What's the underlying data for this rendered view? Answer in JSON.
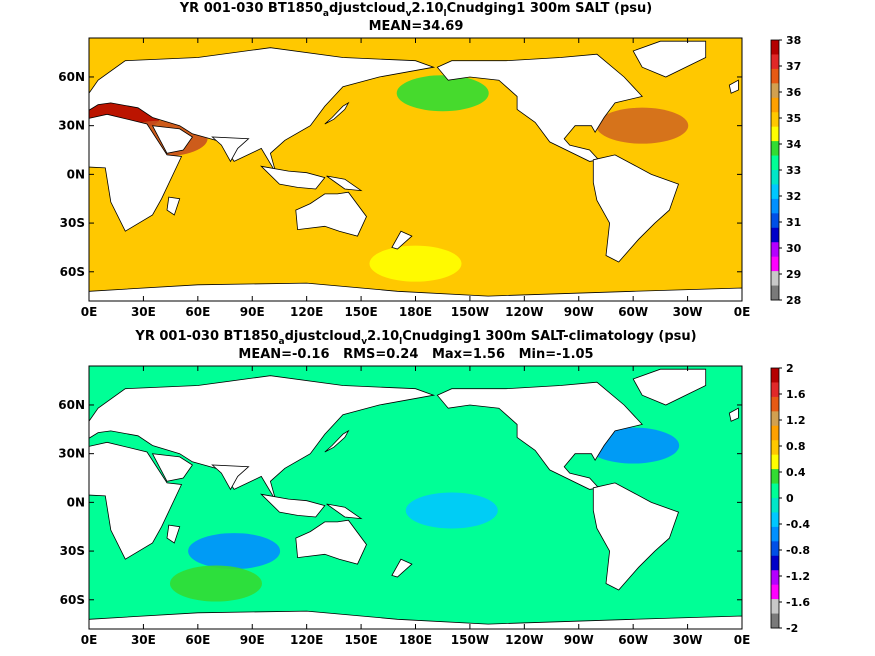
{
  "chart_data": [
    {
      "type": "heatmap",
      "title_parts": [
        "YR 001-030 BT1850",
        "a",
        "djustcloud",
        "v",
        "2.10",
        "l",
        "Cnudging1 300m SALT (psu)"
      ],
      "subtitle": "MEAN=34.69",
      "x_ticks": [
        "0E",
        "30E",
        "60E",
        "90E",
        "120E",
        "150E",
        "180E",
        "150W",
        "120W",
        "90W",
        "60W",
        "30W",
        "0E"
      ],
      "y_ticks": [
        "60N",
        "30N",
        "0N",
        "30S",
        "60S"
      ],
      "y_tick_lat": [
        60,
        30,
        0,
        -30,
        -60
      ],
      "colorbar_labels": [
        "38",
        "37",
        "36",
        "35",
        "34",
        "33",
        "32",
        "31",
        "30",
        "29",
        "28"
      ],
      "colorbar_colors": [
        "#b40000",
        "#e02828",
        "#e65a14",
        "#d2a050",
        "#ffa000",
        "#ffc800",
        "#ffff00",
        "#32dc32",
        "#00ff96",
        "#00e6c8",
        "#00c8ff",
        "#0090ff",
        "#0050e6",
        "#0000c8",
        "#b400ff",
        "#ff00ff",
        "#c8c8c8",
        "#7a7a7a"
      ],
      "background_color": "#ffc800",
      "regions": [
        {
          "label": "north-atlantic-high",
          "lon": 305,
          "lat": 30,
          "color": "#d2691e"
        },
        {
          "label": "mediterranean",
          "lon": 15,
          "lat": 37,
          "color": "#b40000"
        },
        {
          "label": "red-sea",
          "lon": 40,
          "lat": 22,
          "color": "#c8501e"
        },
        {
          "label": "north-pacific-fresh",
          "lon": 195,
          "lat": 50,
          "color": "#32dc32"
        },
        {
          "label": "southern-ocean",
          "lon": 180,
          "lat": -55,
          "color": "#ffff00"
        }
      ]
    },
    {
      "type": "heatmap",
      "title_parts": [
        "YR 001-030 BT1850",
        "a",
        "djustcloud",
        "v",
        "2.10",
        "l",
        "Cnudging1 300m SALT-climatology (psu)"
      ],
      "subtitle": "MEAN=-0.16   RMS=0.24   Max=1.56   Min=-1.05",
      "x_ticks": [
        "0E",
        "30E",
        "60E",
        "90E",
        "120E",
        "150E",
        "180E",
        "150W",
        "120W",
        "90W",
        "60W",
        "30W",
        "0E"
      ],
      "y_ticks": [
        "60N",
        "30N",
        "0N",
        "30S",
        "60S"
      ],
      "y_tick_lat": [
        60,
        30,
        0,
        -30,
        -60
      ],
      "colorbar_labels": [
        "2",
        "1.6",
        "1.2",
        "0.8",
        "0.4",
        "0",
        "-0.4",
        "-0.8",
        "-1.2",
        "-1.6",
        "-2"
      ],
      "colorbar_colors": [
        "#b40000",
        "#e02828",
        "#e65a14",
        "#d2a050",
        "#ffa000",
        "#ffc800",
        "#ffff00",
        "#32dc32",
        "#00ff96",
        "#00e6c8",
        "#00c8ff",
        "#0090ff",
        "#0050e6",
        "#0000c8",
        "#b400ff",
        "#ff00ff",
        "#c8c8c8",
        "#7a7a7a"
      ],
      "background_color": "#00ff96",
      "regions": [
        {
          "label": "gulf-stream-fresh",
          "lon": 300,
          "lat": 35,
          "color": "#0090ff"
        },
        {
          "label": "indian-ocean-fresh",
          "lon": 80,
          "lat": -30,
          "color": "#0090ff"
        },
        {
          "label": "equatorial-pacific",
          "lon": 200,
          "lat": -5,
          "color": "#00c8ff"
        },
        {
          "label": "south-indian-salty",
          "lon": 70,
          "lat": -50,
          "color": "#32dc32"
        }
      ]
    }
  ]
}
